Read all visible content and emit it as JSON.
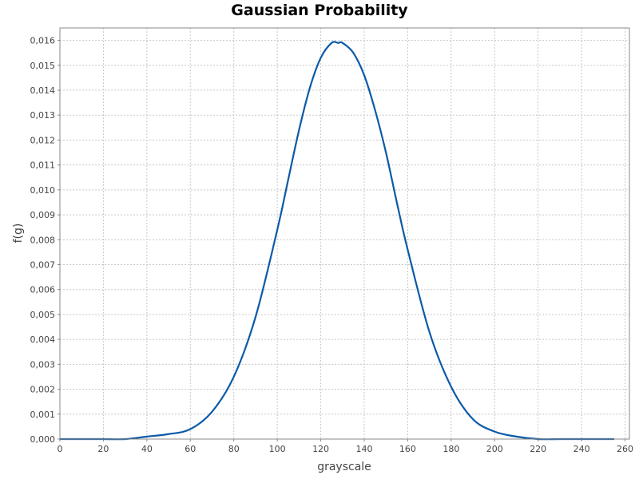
{
  "chart_data": {
    "type": "line",
    "title": "Gaussian Probability",
    "xlabel": "grayscale",
    "ylabel": "f(g)",
    "xlim": [
      0,
      262
    ],
    "ylim": [
      0,
      0.0165
    ],
    "x_ticks": [
      0,
      20,
      40,
      60,
      80,
      100,
      120,
      140,
      160,
      180,
      200,
      220,
      240,
      260
    ],
    "x_tick_labels": [
      "0",
      "20",
      "40",
      "60",
      "80",
      "100",
      "120",
      "140",
      "160",
      "180",
      "200",
      "220",
      "240",
      "260"
    ],
    "y_ticks": [
      0,
      0.001,
      0.002,
      0.003,
      0.004,
      0.005,
      0.006,
      0.007,
      0.008,
      0.009,
      0.01,
      0.011,
      0.012,
      0.013,
      0.014,
      0.015,
      0.016
    ],
    "y_tick_labels": [
      "0,000",
      "0,001",
      "0,002",
      "0,003",
      "0,004",
      "0,005",
      "0,006",
      "0,007",
      "0,008",
      "0,009",
      "0,010",
      "0,011",
      "0,012",
      "0,013",
      "0,014",
      "0,015",
      "0,016"
    ],
    "grid": true,
    "legend": "none",
    "line_color": "#0b5aa8",
    "series": [
      {
        "x": [
          0,
          10,
          20,
          30,
          40,
          50,
          60,
          70,
          80,
          90,
          100,
          105,
          110,
          115,
          120,
          125,
          128,
          130,
          135,
          140,
          145,
          150,
          155,
          160,
          170,
          180,
          190,
          200,
          210,
          220,
          230,
          240,
          250,
          255
        ],
        "values": [
          0.0,
          0.0,
          0.0,
          0.0,
          0.0001,
          0.0002,
          0.0004,
          0.0011,
          0.0025,
          0.0049,
          0.0084,
          0.0104,
          0.0124,
          0.0141,
          0.0153,
          0.0159,
          0.0159,
          0.0159,
          0.0155,
          0.0146,
          0.0132,
          0.0115,
          0.0095,
          0.0076,
          0.0043,
          0.0021,
          0.0008,
          0.0003,
          0.0001,
          0.0,
          0.0,
          0.0,
          0.0,
          0.0
        ]
      }
    ]
  }
}
